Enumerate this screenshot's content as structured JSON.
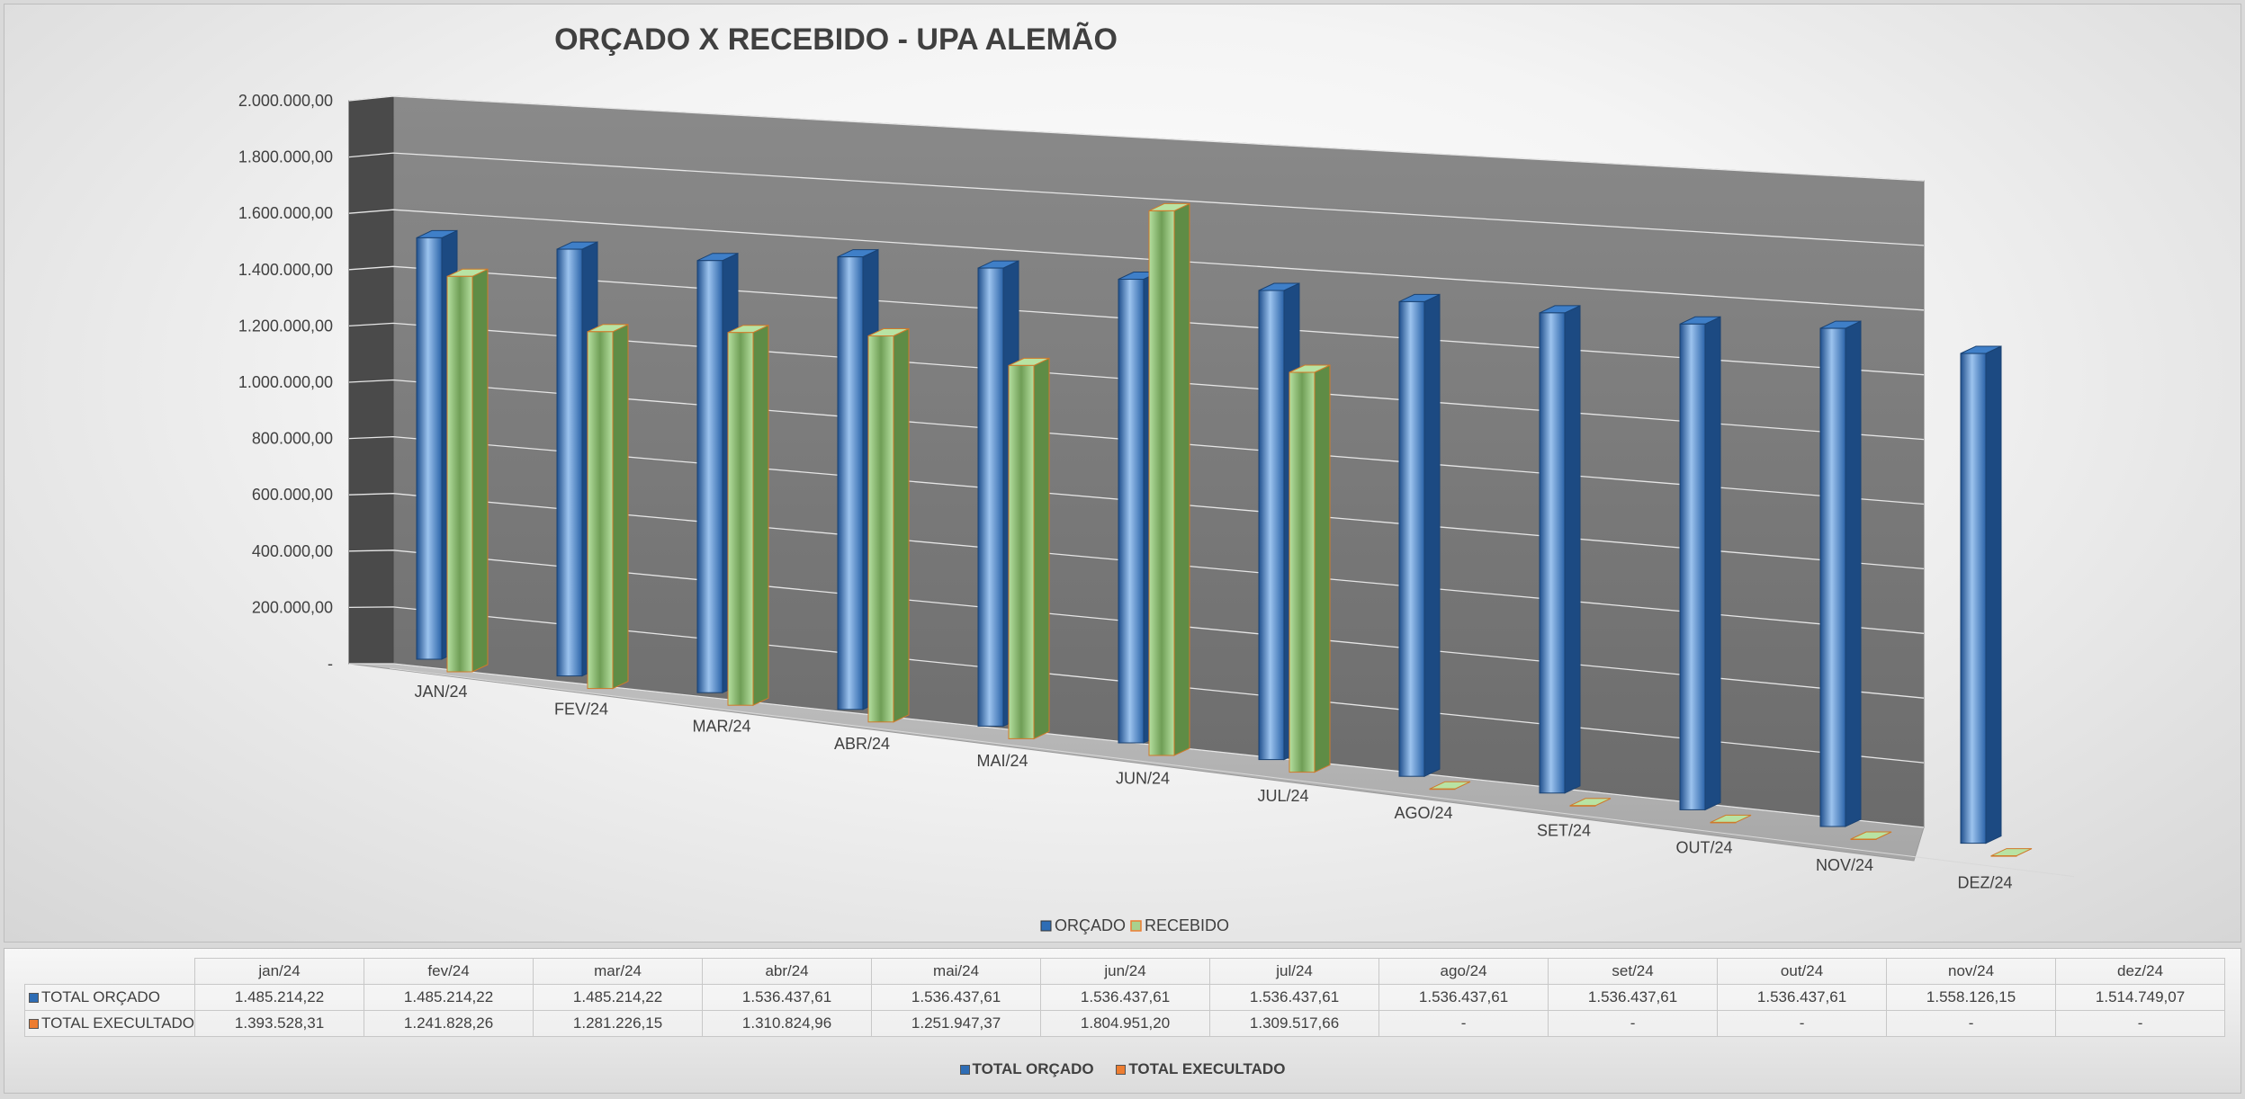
{
  "chart_data": {
    "type": "bar",
    "title": "ORÇADO X RECEBIDO - UPA ALEMÃO",
    "categories": [
      "JAN/24",
      "FEV/24",
      "MAR/24",
      "ABR/24",
      "MAI/24",
      "JUN/24",
      "JUL/24",
      "AGO/24",
      "SET/24",
      "OUT/24",
      "NOV/24",
      "DEZ/24"
    ],
    "series": [
      {
        "name": "ORÇADO",
        "color": "#2e6db5",
        "values": [
          1485214.22,
          1485214.22,
          1485214.22,
          1536437.61,
          1536437.61,
          1536437.61,
          1536437.61,
          1536437.61,
          1536437.61,
          1536437.61,
          1558126.15,
          1514749.07
        ]
      },
      {
        "name": "RECEBIDO",
        "color": "#a9d18e",
        "values": [
          1393528.31,
          1241828.26,
          1281226.15,
          1310824.96,
          1251947.37,
          1804951.2,
          1309517.66,
          0,
          0,
          0,
          0,
          0
        ]
      }
    ],
    "yticks": [
      "-",
      "200.000,00",
      "400.000,00",
      "600.000,00",
      "800.000,00",
      "1.000.000,00",
      "1.200.000,00",
      "1.400.000,00",
      "1.600.000,00",
      "1.800.000,00",
      "2.000.000,00"
    ],
    "ylim": [
      0,
      2000000
    ],
    "legend_position": "bottom"
  },
  "data_table": {
    "headers": [
      "jan/24",
      "fev/24",
      "mar/24",
      "abr/24",
      "mai/24",
      "jun/24",
      "jul/24",
      "ago/24",
      "set/24",
      "out/24",
      "nov/24",
      "dez/24"
    ],
    "rows": [
      {
        "label": "TOTAL ORÇADO",
        "key_color": "#2e6db5",
        "cells": [
          "1.485.214,22",
          "1.485.214,22",
          "1.485.214,22",
          "1.536.437,61",
          "1.536.437,61",
          "1.536.437,61",
          "1.536.437,61",
          "1.536.437,61",
          "1.536.437,61",
          "1.536.437,61",
          "1.558.126,15",
          "1.514.749,07"
        ]
      },
      {
        "label": "TOTAL EXECULTADO",
        "key_color": "#ed7d31",
        "cells": [
          "1.393.528,31",
          "1.241.828,26",
          "1.281.226,15",
          "1.310.824,96",
          "1.251.947,37",
          "1.804.951,20",
          "1.309.517,66",
          "-",
          "-",
          "-",
          "-",
          "-"
        ]
      }
    ],
    "legend": [
      "TOTAL ORÇADO",
      "TOTAL EXECULTADO"
    ]
  }
}
